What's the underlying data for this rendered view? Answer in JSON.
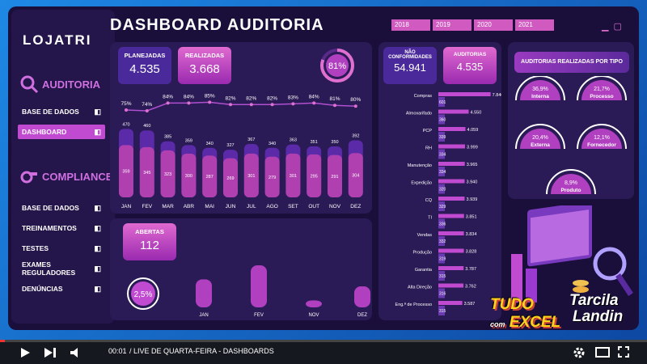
{
  "header": {
    "title": "DASHBOARD AUDITORIA",
    "years": [
      "2018",
      "2019",
      "2020",
      "2021"
    ]
  },
  "sidebar": {
    "logo": "LOJATRI",
    "auditoria_title": "AUDITORIA",
    "auditoria_items": [
      {
        "label": "BASE DE DADOS",
        "icon": "database-icon"
      },
      {
        "label": "DASHBOARD",
        "icon": "pie-chart-icon",
        "active": true
      }
    ],
    "compliance_title": "COMPLIANCE",
    "compliance_items": [
      {
        "label": "BASE DE DADOS",
        "icon": "database-icon"
      },
      {
        "label": "TREINAMENTOS",
        "icon": "pie-chart-icon"
      },
      {
        "label": "TESTES",
        "icon": "bar-chart-icon"
      },
      {
        "label": "EXAMES REGULADORES",
        "icon": "line-chart-icon"
      },
      {
        "label": "DENÚNCIAS",
        "icon": "trend-down-icon"
      }
    ]
  },
  "kpis": {
    "planejadas_label": "PLANEJADAS",
    "planejadas_value": "4.535",
    "realizadas_label": "REALIZADAS",
    "realizadas_value": "3.668",
    "percent_done": "81%",
    "nao_conformidades_label": "NÃO CONFORMIDADES",
    "nao_conformidades_value": "54.941",
    "auditorias_label": "AUDITORIAS",
    "auditorias_value": "4.535",
    "abertas_label": "ABERTAS",
    "abertas_value": "112",
    "abertas_pct": "2,5%"
  },
  "colors": {
    "accent": "#c04ad0",
    "panel": "#2a1a55",
    "bg": "#1a0f3a",
    "pink": "#e070d0"
  },
  "chart_data": [
    {
      "type": "bar",
      "categories": [
        "JAN",
        "FEV",
        "MAR",
        "ABR",
        "MAI",
        "JUN",
        "JUL",
        "AGO",
        "SET",
        "OUT",
        "NOV",
        "DEZ"
      ],
      "series": [
        {
          "values": [
            470,
            460,
            385,
            359,
            340,
            327,
            367,
            340,
            363,
            351,
            350,
            392
          ]
        },
        {
          "values": [
            359,
            345,
            323,
            300,
            287,
            269,
            301,
            279,
            301,
            295,
            291,
            304
          ]
        }
      ],
      "line_labels": [
        "75%",
        "74%",
        "84%",
        "84%",
        "85%",
        "82%",
        "82%",
        "82%",
        "83%",
        "84%",
        "81%",
        "80%"
      ],
      "line_values": [
        75,
        74,
        84,
        84,
        85,
        82,
        82,
        82,
        83,
        84,
        81,
        80
      ]
    },
    {
      "type": "bar",
      "orientation": "horizontal",
      "categories": [
        "Compras",
        "Almoxarifado",
        "PCP",
        "RH",
        "Manutenção",
        "Expedição",
        "CQ",
        "TI",
        "Vendas",
        "Produção",
        "Garantia",
        "Alta Direção",
        "Eng.ª de Processo"
      ],
      "values": [
        7840,
        4550,
        4059,
        3999,
        3965,
        3940,
        3939,
        3851,
        3834,
        3828,
        3787,
        3762,
        3587
      ],
      "secondary_labels": [
        "601",
        "360",
        "339",
        "334",
        "334",
        "320",
        "329",
        "336",
        "332",
        "319",
        "315",
        "316",
        "315"
      ]
    },
    {
      "type": "bar",
      "categories": [
        "JAN",
        "FEV",
        "NOV",
        "DEZ"
      ],
      "values": [
        4,
        6,
        1,
        3
      ]
    }
  ],
  "tipos": {
    "title": "AUDITORIAS REALIZADAS POR TIPO",
    "items": [
      {
        "pct": "36,9%",
        "label": "Interna"
      },
      {
        "pct": "21,7%",
        "label": "Processo"
      },
      {
        "pct": "20,4%",
        "label": "Externa"
      },
      {
        "pct": "12,1%",
        "label": "Fornecedor"
      },
      {
        "pct": "8,9%",
        "label": "Produto"
      }
    ]
  },
  "branding": {
    "tudo": "TUDO",
    "com": "com",
    "excel": "EXCEL",
    "name1": "Tarcila",
    "name2": "Landin"
  },
  "player": {
    "time": "00:01",
    "title": "/ LIVE DE QUARTA-FEIRA - DASHBOARDS"
  }
}
